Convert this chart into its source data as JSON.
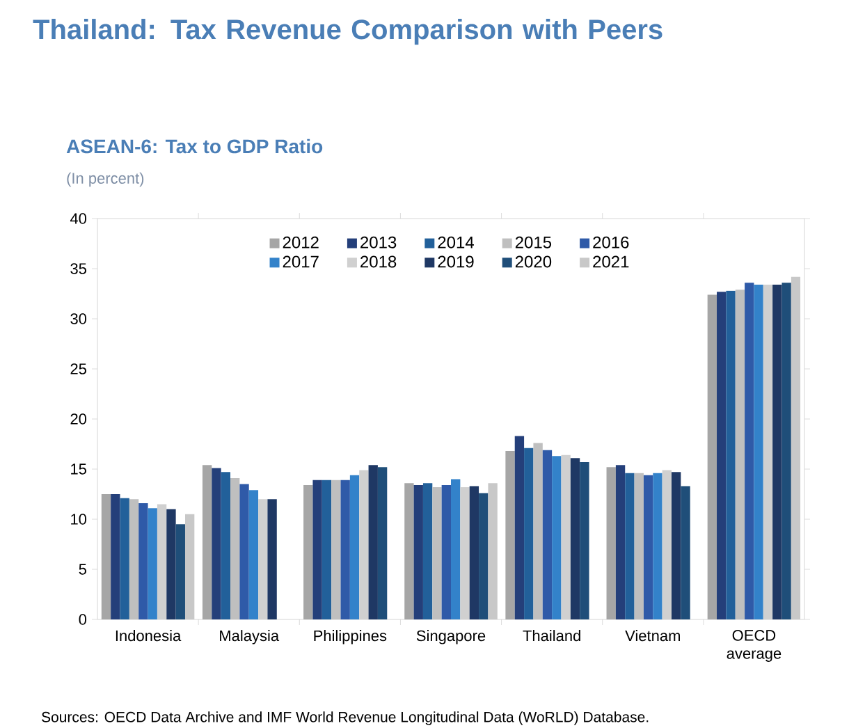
{
  "chart_data": {
    "type": "bar",
    "title": "Thailand: Tax Revenue Comparison with Peers",
    "subtitle": "ASEAN-6: Tax to GDP Ratio",
    "ylabel": "(In percent)",
    "categories": [
      "Indonesia",
      "Malaysia",
      "Philippines",
      "Singapore",
      "Thailand",
      "Vietnam",
      "OECD average"
    ],
    "series": [
      {
        "name": "2012",
        "color": "#a6a6a6",
        "values": [
          12.5,
          15.4,
          13.4,
          13.6,
          16.8,
          15.2,
          32.4
        ]
      },
      {
        "name": "2013",
        "color": "#243f7a",
        "values": [
          12.5,
          15.1,
          13.9,
          13.4,
          18.3,
          15.4,
          32.7
        ]
      },
      {
        "name": "2014",
        "color": "#22609a",
        "values": [
          12.1,
          14.7,
          13.9,
          13.6,
          17.1,
          14.6,
          32.8
        ]
      },
      {
        "name": "2015",
        "color": "#bfbfbf",
        "values": [
          12.0,
          14.1,
          13.9,
          13.2,
          17.6,
          14.6,
          32.9
        ]
      },
      {
        "name": "2016",
        "color": "#2f5aa8",
        "values": [
          11.6,
          13.5,
          13.9,
          13.4,
          16.9,
          14.4,
          33.6
        ]
      },
      {
        "name": "2017",
        "color": "#3382ca",
        "values": [
          11.1,
          12.9,
          14.4,
          14.0,
          16.3,
          14.6,
          33.4
        ]
      },
      {
        "name": "2018",
        "color": "#d0d0d0",
        "values": [
          11.5,
          12.0,
          14.9,
          13.2,
          16.4,
          14.9,
          33.4
        ]
      },
      {
        "name": "2019",
        "color": "#1f3864",
        "values": [
          11.0,
          12.0,
          15.4,
          13.3,
          16.1,
          14.7,
          33.4
        ]
      },
      {
        "name": "2020",
        "color": "#1f4e79",
        "values": [
          9.5,
          null,
          15.2,
          12.6,
          15.7,
          13.3,
          33.6
        ]
      },
      {
        "name": "2021",
        "color": "#c8c8c8",
        "values": [
          10.5,
          null,
          null,
          13.6,
          null,
          null,
          34.2
        ]
      }
    ],
    "ylim": [
      0,
      40
    ],
    "yticks": [
      0,
      5,
      10,
      15,
      20,
      25,
      30,
      35,
      40
    ],
    "legend": "top",
    "annotations": [
      "Sources: OECD Data Archive and IMF World Revenue Longitudinal Data (WoRLD) Database."
    ]
  }
}
